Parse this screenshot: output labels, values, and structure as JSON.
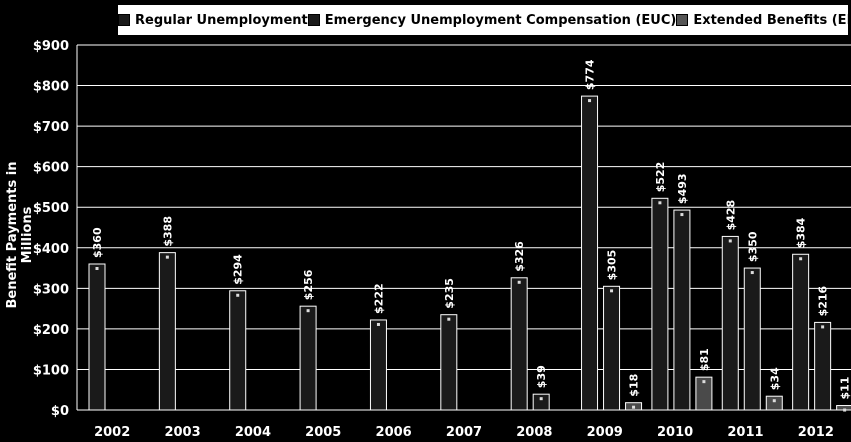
{
  "legend": {
    "items": [
      {
        "label": "Regular Unemployment",
        "color": "#1a1a1a"
      },
      {
        "label": "Emergency Unemployment Compensation (EUC)",
        "color": "#1a1a1a"
      },
      {
        "label": "Extended Benefits (EB)",
        "color": "#555555"
      }
    ]
  },
  "chart_data": {
    "type": "bar",
    "ylabel": "Benefit Payments in Millions",
    "xlabel": "",
    "ylim": [
      0,
      900
    ],
    "yticks": [
      "$0",
      "$100",
      "$200",
      "$300",
      "$400",
      "$500",
      "$600",
      "$700",
      "$800",
      "$900"
    ],
    "grid": true,
    "legend_position": "top",
    "categories": [
      "2002",
      "2003",
      "2004",
      "2005",
      "2006",
      "2007",
      "2008",
      "2009",
      "2010",
      "2011",
      "2012"
    ],
    "series": [
      {
        "name": "Regular Unemployment",
        "values": [
          360,
          388,
          294,
          256,
          222,
          235,
          326,
          774,
          522,
          428,
          384
        ],
        "labels": [
          "$360",
          "$388",
          "$294",
          "$256",
          "$222",
          "$235",
          "$326",
          "$774",
          "$522",
          "$428",
          "$384"
        ]
      },
      {
        "name": "Emergency Unemployment Compensation (EUC)",
        "values": [
          null,
          null,
          null,
          null,
          null,
          null,
          39,
          305,
          493,
          350,
          216
        ],
        "labels": [
          "",
          "",
          "",
          "",
          "",
          "",
          "$39",
          "$305",
          "$493",
          "$350",
          "$216"
        ]
      },
      {
        "name": "Extended Benefits (EB)",
        "values": [
          null,
          null,
          null,
          null,
          null,
          null,
          null,
          18,
          81,
          34,
          11
        ],
        "labels": [
          "",
          "",
          "",
          "",
          "",
          "",
          "",
          "$18",
          "$81",
          "$34",
          "$11"
        ]
      }
    ]
  }
}
